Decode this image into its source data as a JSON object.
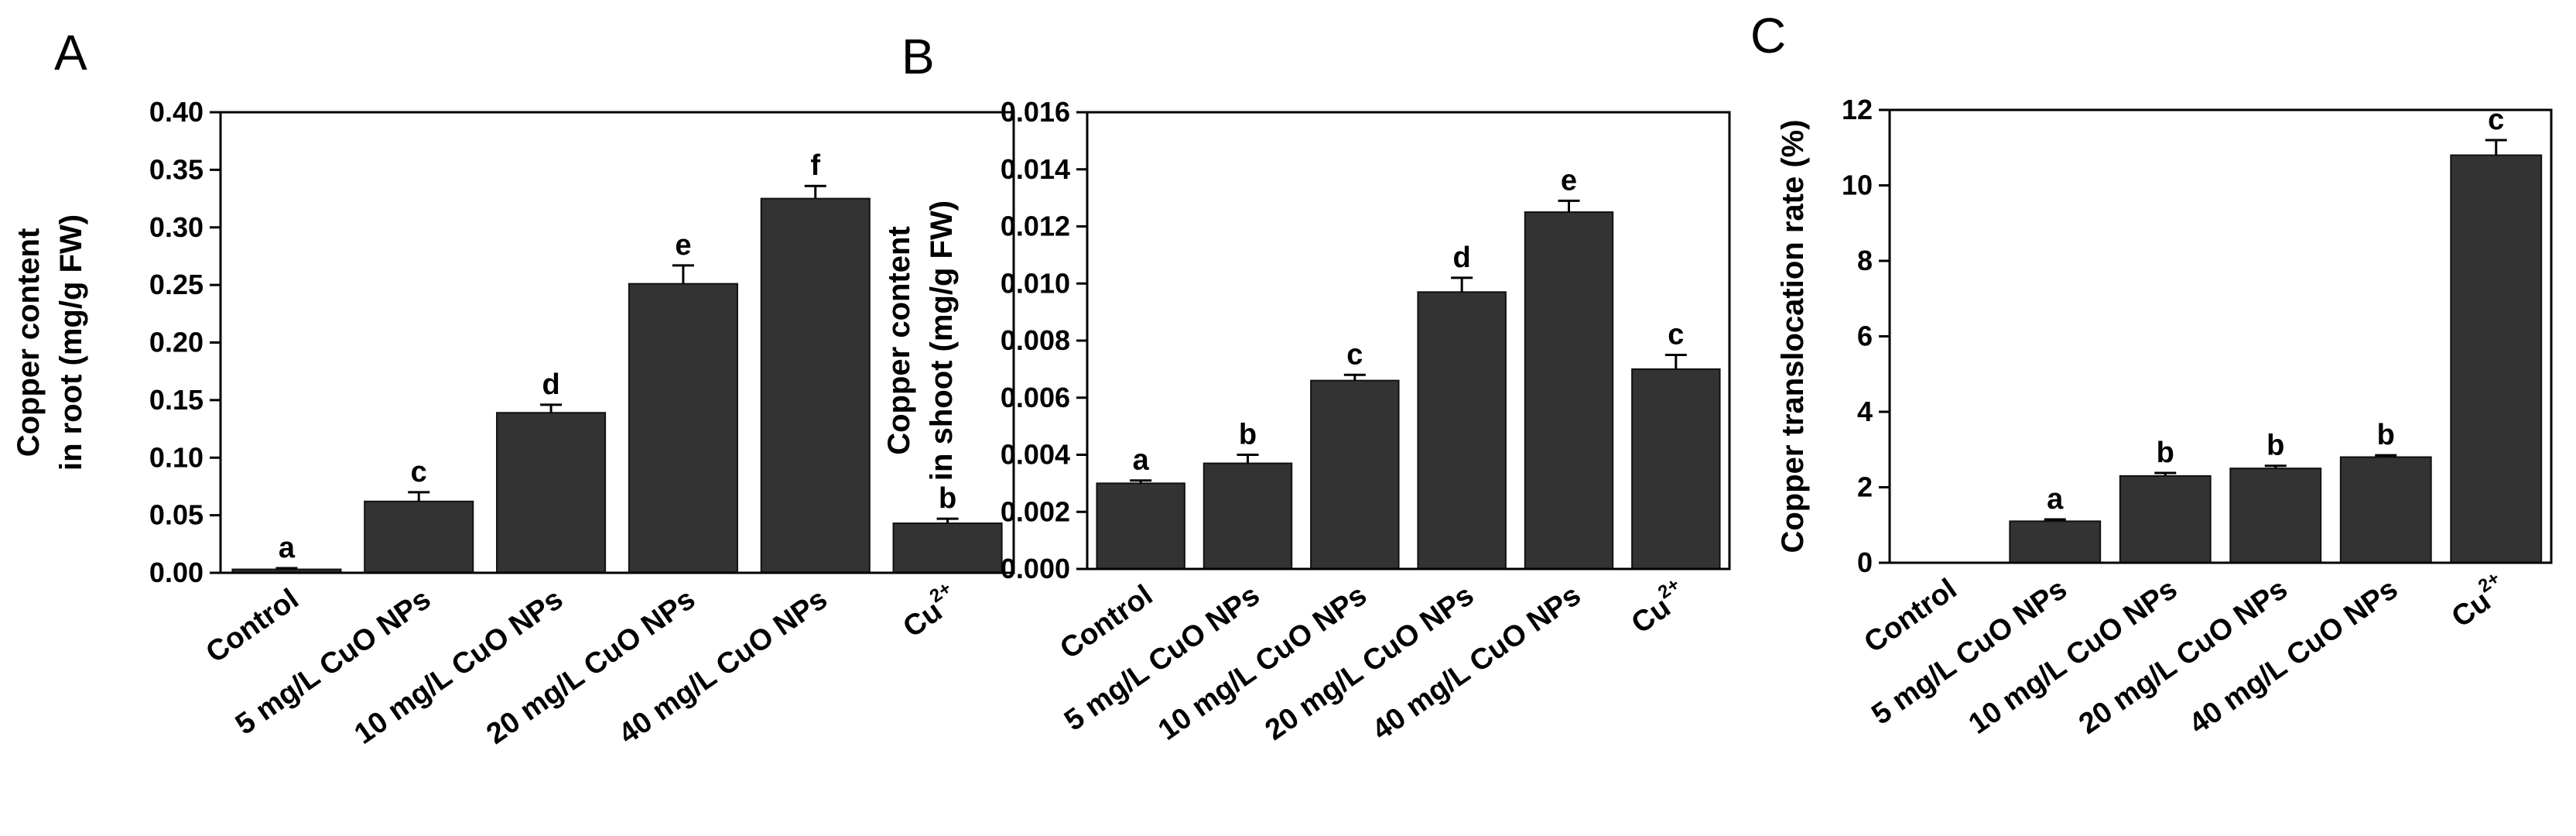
{
  "colors": {
    "bar": "#333333",
    "axis": "#000000",
    "background": "#ffffff"
  },
  "chart_data": [
    {
      "panel": "A",
      "type": "bar",
      "categories": [
        "Control",
        "5 mg/L CuO NPs",
        "10 mg/L CuO NPs",
        "20 mg/L CuO NPs",
        "40 mg/L CuO NPs",
        "Cu"
      ],
      "category_superscripts": [
        "",
        "",
        "",
        "",
        "",
        "2+"
      ],
      "values": [
        0.003,
        0.062,
        0.139,
        0.251,
        0.325,
        0.043
      ],
      "errors": [
        0.001,
        0.008,
        0.007,
        0.016,
        0.011,
        0.004
      ],
      "significance": [
        "a",
        "c",
        "d",
        "e",
        "f",
        "b"
      ],
      "ylabel_line1": "Copper content",
      "ylabel_line2": "in root (mg/g FW)",
      "xlabel": "",
      "ylim": [
        0,
        0.4
      ],
      "yticks": [
        "0.00",
        "0.05",
        "0.10",
        "0.15",
        "0.20",
        "0.25",
        "0.30",
        "0.35",
        "0.40"
      ]
    },
    {
      "panel": "B",
      "type": "bar",
      "categories": [
        "Control",
        "5 mg/L CuO NPs",
        "10 mg/L CuO NPs",
        "20 mg/L CuO NPs",
        "40 mg/L CuO NPs",
        "Cu"
      ],
      "category_superscripts": [
        "",
        "",
        "",
        "",
        "",
        "2+"
      ],
      "values": [
        0.003,
        0.0037,
        0.0066,
        0.0097,
        0.0125,
        0.007
      ],
      "errors": [
        0.0001,
        0.0003,
        0.0002,
        0.0005,
        0.0004,
        0.0005
      ],
      "significance": [
        "a",
        "b",
        "c",
        "d",
        "e",
        "c"
      ],
      "ylabel_line1": "Copper content",
      "ylabel_line2": "in shoot (mg/g FW)",
      "xlabel": "",
      "ylim": [
        0,
        0.016
      ],
      "yticks": [
        "0.000",
        "0.002",
        "0.004",
        "0.006",
        "0.008",
        "0.010",
        "0.012",
        "0.014",
        "0.016"
      ]
    },
    {
      "panel": "C",
      "type": "bar",
      "categories": [
        "Control",
        "5 mg/L CuO NPs",
        "10 mg/L CuO NPs",
        "20 mg/L CuO NPs",
        "40 mg/L CuO NPs",
        "Cu"
      ],
      "category_superscripts": [
        "",
        "",
        "",
        "",
        "",
        "2+"
      ],
      "values": [
        0,
        1.1,
        2.3,
        2.5,
        2.8,
        10.8
      ],
      "errors": [
        0,
        0.05,
        0.08,
        0.07,
        0.05,
        0.4
      ],
      "significance": [
        "",
        "a",
        "b",
        "b",
        "b",
        "c"
      ],
      "ylabel_line1": "Copper translocation rate (%)",
      "ylabel_line2": "",
      "xlabel": "",
      "ylim": [
        0,
        12
      ],
      "yticks": [
        "0",
        "2",
        "4",
        "6",
        "8",
        "10",
        "12"
      ]
    }
  ]
}
